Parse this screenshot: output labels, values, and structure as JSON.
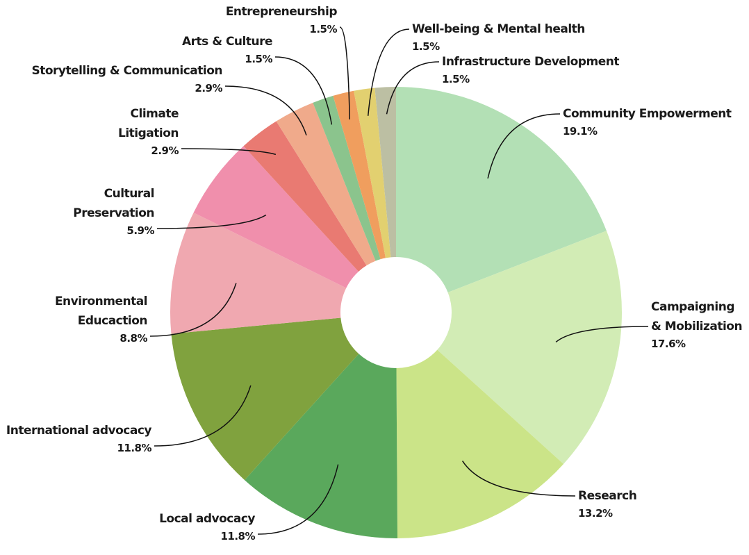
{
  "chart_data": {
    "type": "donut",
    "categories": [
      "Community Empowerment",
      "Campaigning\n& Mobilization",
      "Research",
      "Local advocacy",
      "International advocacy",
      "Environmental\nEducaction",
      "Cultural\nPreservation",
      "Climate\nLitigation",
      "Storytelling & Communication",
      "Arts & Culture",
      "Entrepreneurship",
      "Well-being & Mental health",
      "Infrastructure Development"
    ],
    "values": [
      19.1,
      17.6,
      13.2,
      11.8,
      11.8,
      8.8,
      5.9,
      2.9,
      2.9,
      1.5,
      1.5,
      1.5,
      1.5
    ],
    "value_labels": [
      "19.1%",
      "17.6%",
      "13.2%",
      "11.8%",
      "11.8%",
      "8.8%",
      "5.9%",
      "2.9%",
      "2.9%",
      "1.5%",
      "1.5%",
      "1.5%",
      "1.5%"
    ],
    "colors": [
      "#b3e0b5",
      "#d2ecb5",
      "#cbe488",
      "#5aa85c",
      "#80a23e",
      "#f0a8b0",
      "#f08fac",
      "#e97a72",
      "#f0aa8b",
      "#8bc48d",
      "#f09e5e",
      "#e2d070",
      "#bcbfa3"
    ]
  }
}
